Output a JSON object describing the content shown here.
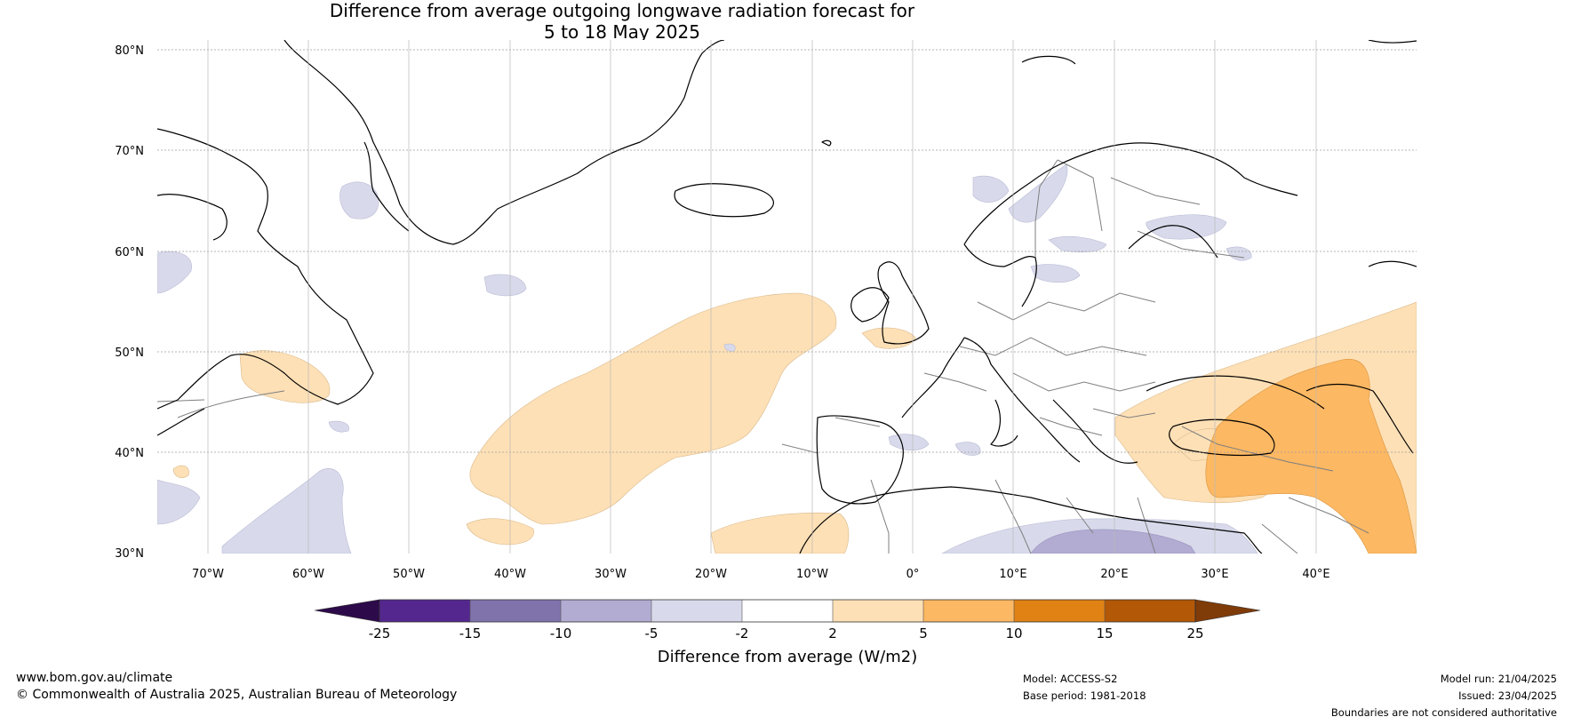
{
  "title": {
    "line1": "Difference from average outgoing longwave radiation forecast for",
    "line2": "5 to 18 May 2025"
  },
  "map": {
    "lat_labels": [
      "80°N",
      "70°N",
      "60°N",
      "50°N",
      "40°N",
      "30°N"
    ],
    "lon_labels": [
      "70°W",
      "60°W",
      "50°W",
      "40°W",
      "30°W",
      "20°W",
      "10°W",
      "0°",
      "10°E",
      "20°E",
      "30°E",
      "40°E"
    ],
    "lat_range": [
      30,
      81
    ],
    "lon_range": [
      -75,
      50
    ]
  },
  "colorbar": {
    "title": "Difference from average (W/m2)",
    "ticks": [
      "-25",
      "-15",
      "-10",
      "-5",
      "-2",
      "2",
      "5",
      "10",
      "15",
      "25"
    ],
    "colors": {
      "under": "#2d0b4a",
      "c1": "#54278f",
      "c2": "#8073ac",
      "c3": "#b2abd2",
      "c4": "#d8daeb",
      "c5": "#ffffff",
      "c6": "#fee0b6",
      "c7": "#fdb863",
      "c8": "#e08214",
      "c9": "#b35806",
      "over": "#7f3b08"
    }
  },
  "footer": {
    "url": "www.bom.gov.au/climate",
    "copyright": "© Commonwealth of Australia 2025, Australian Bureau of Meteorology",
    "model": "Model: ACCESS-S2",
    "base_period": "Base period: 1981-2018",
    "model_run": "Model run: 21/04/2025",
    "issued": "Issued: 23/04/2025",
    "disclaimer": "Boundaries are not considered authoritative"
  }
}
